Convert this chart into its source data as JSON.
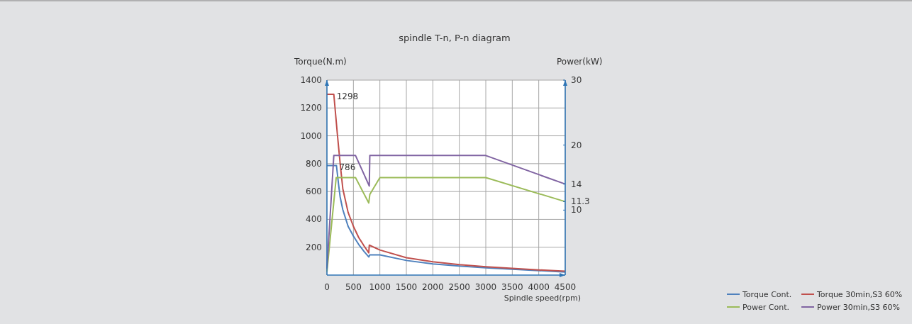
{
  "chart_data": {
    "type": "line",
    "title": "spindle T-n, P-n diagram",
    "xlabel": "Spindle speed(rpm)",
    "ylabel": "Torque(N.m)",
    "y2label": "Power(kW)",
    "xlim": [
      0,
      4500
    ],
    "xticks": [
      0,
      500,
      1000,
      1500,
      2000,
      2500,
      3000,
      3500,
      4000,
      4500
    ],
    "ylim": [
      0,
      1400
    ],
    "yticks": [
      200,
      400,
      600,
      800,
      1000,
      1200,
      1400
    ],
    "y2lim": [
      0,
      30
    ],
    "y2ticks": [
      10,
      11.3,
      14,
      20,
      30
    ],
    "grid": true,
    "legend": "bottom right",
    "line_style": "solid",
    "marker": "none",
    "annotations": [
      {
        "text": "1298",
        "x": 130,
        "y": 1298
      },
      {
        "text": "786",
        "x": 180,
        "y": 786
      }
    ],
    "series": [
      {
        "name": "Torque Cont.",
        "color": "#4f81bd",
        "x": [
          0,
          180,
          220,
          250,
          300,
          400,
          500,
          600,
          700,
          790,
          810,
          1000,
          1500,
          2000,
          2500,
          3000,
          3500,
          4000,
          4500
        ],
        "values": [
          786,
          786,
          650,
          560,
          470,
          350,
          280,
          220,
          170,
          130,
          145,
          145,
          105,
          80,
          65,
          52,
          42,
          32,
          22
        ]
      },
      {
        "name": "Torque 30min,S3 60%",
        "color": "#c0504d",
        "x": [
          0,
          130,
          200,
          250,
          300,
          400,
          500,
          600,
          700,
          790,
          800,
          1000,
          1500,
          2000,
          2500,
          3000,
          3500,
          4000,
          4500
        ],
        "values": [
          1298,
          1298,
          1000,
          800,
          620,
          450,
          350,
          270,
          210,
          160,
          215,
          180,
          125,
          95,
          75,
          60,
          48,
          37,
          28
        ]
      },
      {
        "name": "Power Cont.",
        "color": "#9bbb59",
        "axis": "y2",
        "x": [
          0,
          175,
          540,
          790,
          810,
          1000,
          3000,
          4500
        ],
        "values": [
          0.5,
          15,
          15,
          11.1,
          12.4,
          15,
          15,
          11.3
        ]
      },
      {
        "name": "Power 30min,S3 60%",
        "color": "#8064a2",
        "axis": "y2",
        "x": [
          0,
          130,
          540,
          800,
          810,
          3000,
          4500
        ],
        "values": [
          1,
          18.4,
          18.4,
          13.7,
          18.4,
          18.4,
          14
        ]
      }
    ]
  }
}
